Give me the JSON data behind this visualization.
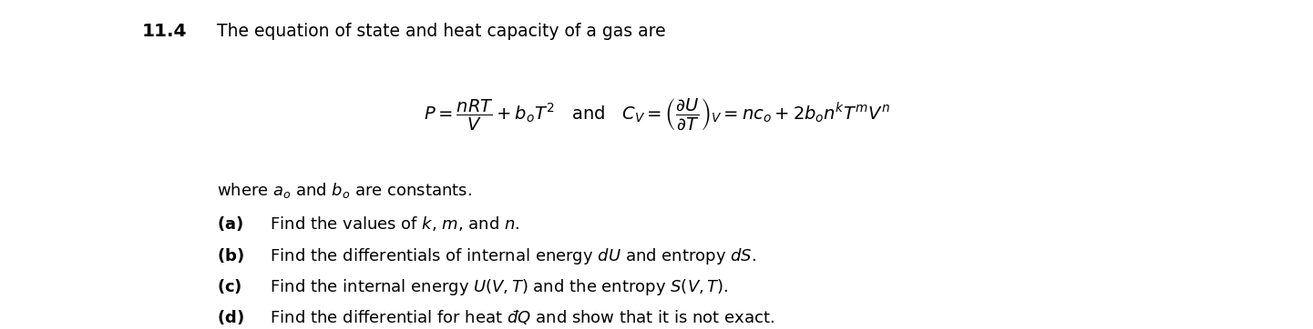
{
  "background_color": "#ffffff",
  "bottom_bar_color": "#6d1a36",
  "problem_number": "11.4",
  "title_text": "The equation of state and heat capacity of a gas are",
  "equation_line": "$P = \\dfrac{nRT}{V} + b_oT^2$   and   $C_V = \\left(\\dfrac{\\partial U}{\\partial T}\\right)_V = nc_o + 2b_o n^k T^m V^n$",
  "where_text": "where $a_o$ and $b_o$ are constants.",
  "parts": [
    "(a)  Find the values of $k$, $m$, and $n$.",
    "(b)  Find the differentials of internal energy $dU$ and entropy $dS$.",
    "(c)  Find the internal energy $U(V, T)$ and the entropy $S(V, T)$.",
    "(d)  Find the differential for heat $\\u0111Q$ and show that it is not exact."
  ],
  "title_fontsize": 13.5,
  "body_fontsize": 13.0,
  "eq_fontsize": 14.0,
  "number_fontsize": 14.5,
  "fig_width": 14.41,
  "fig_height": 3.62
}
